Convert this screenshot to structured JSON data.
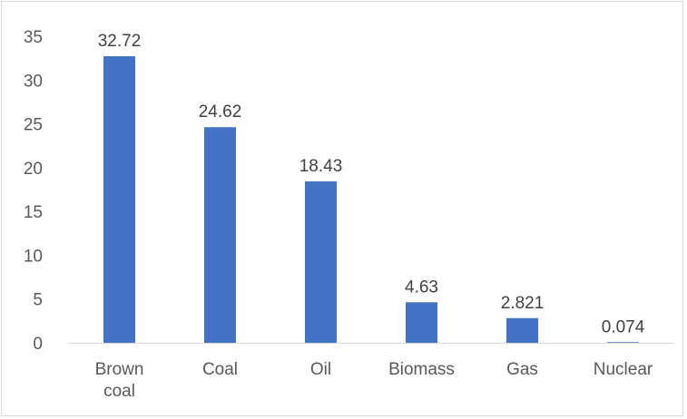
{
  "chart_data": {
    "type": "bar",
    "categories": [
      "Brown coal",
      "Coal",
      "Oil",
      "Biomass",
      "Gas",
      "Nuclear"
    ],
    "category_lines": [
      [
        "Brown",
        "coal"
      ],
      [
        "Coal"
      ],
      [
        "Oil"
      ],
      [
        "Biomass"
      ],
      [
        "Gas"
      ],
      [
        "Nuclear"
      ]
    ],
    "values": [
      32.72,
      24.62,
      18.43,
      4.63,
      2.821,
      0.074
    ],
    "value_labels": [
      "32.72",
      "24.62",
      "18.43",
      "4.63",
      "2.821",
      "0.074"
    ],
    "title": "",
    "xlabel": "",
    "ylabel": "",
    "ylim": [
      0,
      35
    ],
    "yticks": [
      0,
      5,
      10,
      15,
      20,
      25,
      30,
      35
    ],
    "grid": false,
    "bar_color": "#4472C4"
  }
}
